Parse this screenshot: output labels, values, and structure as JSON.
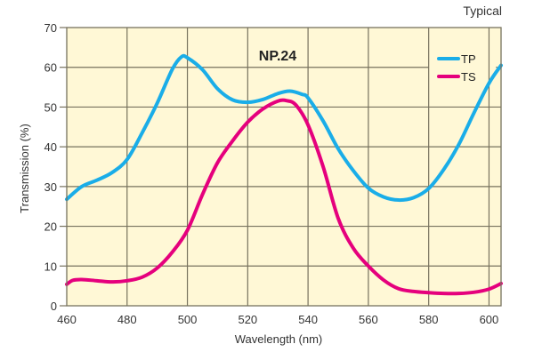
{
  "chart_data": {
    "type": "line",
    "title": "NP.24",
    "corner_note": "Typical",
    "xlabel": "Wavelength (nm)",
    "ylabel": "Transmission (%)",
    "xlim": [
      460,
      604
    ],
    "ylim": [
      0,
      70
    ],
    "xticks": [
      460,
      480,
      500,
      520,
      540,
      560,
      580,
      600
    ],
    "xtick_labels": [
      "460",
      "480",
      "500",
      "520",
      "540",
      "560",
      "580",
      "600"
    ],
    "yticks": [
      0,
      10,
      20,
      30,
      40,
      50,
      60,
      70
    ],
    "ytick_labels": [
      "0",
      "10",
      "20",
      "30",
      "40",
      "50",
      "60",
      "70"
    ],
    "grid": true,
    "background": "#FFF8D6",
    "legend_position": "top-right",
    "series": [
      {
        "name": "TP",
        "color": "#1AADE8",
        "x": [
          460,
          465,
          470,
          475,
          480,
          485,
          490,
          495,
          498,
          500,
          505,
          510,
          515,
          520,
          525,
          530,
          534,
          538,
          540,
          545,
          550,
          555,
          560,
          565,
          570,
          575,
          580,
          585,
          590,
          595,
          600,
          604
        ],
        "y": [
          26.8,
          30.0,
          31.6,
          33.5,
          36.8,
          43.5,
          51.0,
          59.5,
          62.6,
          62.4,
          59.4,
          54.6,
          51.8,
          51.2,
          51.9,
          53.4,
          54.0,
          53.2,
          52.3,
          46.5,
          39.5,
          34.0,
          29.6,
          27.4,
          26.6,
          27.2,
          29.5,
          34.3,
          40.6,
          48.5,
          56.0,
          60.5
        ]
      },
      {
        "name": "TS",
        "color": "#E5007D",
        "x": [
          460,
          462,
          465,
          470,
          475,
          480,
          485,
          490,
          495,
          500,
          505,
          510,
          515,
          520,
          525,
          530,
          533,
          536,
          540,
          545,
          550,
          555,
          560,
          565,
          570,
          575,
          580,
          585,
          590,
          595,
          600,
          604
        ],
        "y": [
          5.4,
          6.4,
          6.6,
          6.3,
          6.0,
          6.3,
          7.2,
          9.5,
          13.5,
          19.0,
          28.0,
          36.0,
          41.5,
          46.2,
          49.5,
          51.5,
          51.6,
          50.5,
          45.5,
          35.0,
          22.0,
          14.5,
          10.0,
          6.5,
          4.3,
          3.6,
          3.3,
          3.1,
          3.1,
          3.4,
          4.2,
          5.6
        ]
      }
    ]
  }
}
